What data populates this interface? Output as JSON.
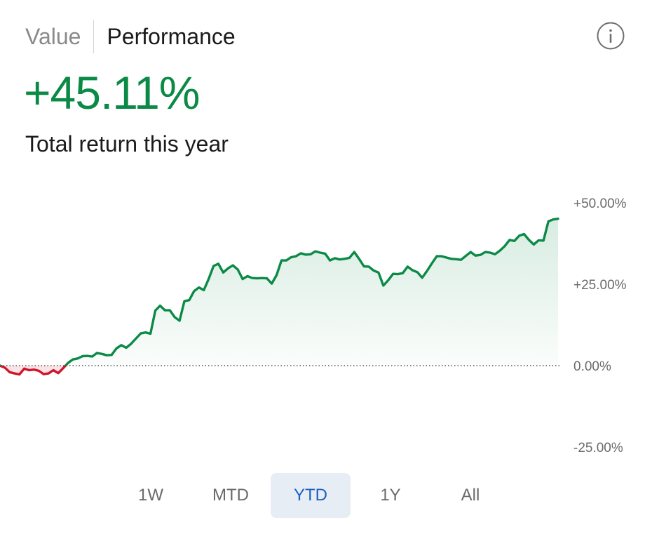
{
  "tabs": {
    "value_label": "Value",
    "performance_label": "Performance",
    "active": "Performance"
  },
  "info_icon": "info-icon",
  "headline": {
    "return_value": "+45.11%",
    "subtitle": "Total return this year"
  },
  "colors": {
    "positive": "#0b8a46",
    "negative": "#d0142c",
    "selected_range_bg": "#e7edf4",
    "selected_range_text": "#1f5fbf"
  },
  "chart_data": {
    "type": "area",
    "title": "",
    "xlabel": "",
    "ylabel": "",
    "ylim": [
      -25,
      50
    ],
    "y_ticks": [
      50,
      25,
      0,
      -25
    ],
    "y_tick_labels": [
      "+50.00%",
      "+25.00%",
      "0.00%",
      "-25.00%"
    ],
    "baseline": 0,
    "grid": false,
    "series": [
      {
        "values": [
          0.0,
          -0.6,
          -2.0,
          -2.4,
          -2.7,
          -0.9,
          -1.4,
          -1.2,
          -1.6,
          -2.6,
          -2.4,
          -1.4,
          -2.3,
          -0.8,
          0.8,
          1.9,
          2.2,
          2.9,
          3.0,
          2.8,
          3.9,
          3.6,
          3.2,
          3.3,
          5.3,
          6.3,
          5.5,
          6.7,
          8.3,
          9.9,
          10.2,
          9.8,
          16.9,
          18.4,
          17.0,
          17.0,
          14.9,
          13.8,
          19.8,
          20.1,
          22.9,
          24.0,
          23.2,
          26.6,
          30.6,
          31.3,
          28.6,
          29.9,
          30.8,
          29.5,
          26.6,
          27.5,
          26.9,
          26.8,
          26.9,
          26.8,
          25.2,
          27.8,
          32.3,
          32.3,
          33.3,
          33.6,
          34.5,
          34.1,
          34.2,
          35.1,
          34.7,
          34.4,
          32.3,
          33.0,
          32.6,
          32.8,
          33.1,
          34.9,
          32.8,
          30.5,
          30.4,
          29.2,
          28.6,
          24.6,
          26.2,
          28.2,
          28.1,
          28.4,
          30.4,
          29.3,
          28.7,
          27.0,
          29.1,
          31.4,
          33.6,
          33.6,
          33.2,
          32.8,
          32.7,
          32.5,
          33.7,
          34.9,
          33.8,
          34.0,
          34.9,
          34.7,
          34.2,
          35.3,
          36.7,
          38.6,
          38.3,
          39.9,
          40.4,
          38.6,
          37.2,
          38.5,
          38.4,
          44.3,
          44.9,
          45.11
        ]
      }
    ]
  },
  "range_selector": {
    "options": [
      "1W",
      "MTD",
      "YTD",
      "1Y",
      "All"
    ],
    "selected": "YTD"
  }
}
